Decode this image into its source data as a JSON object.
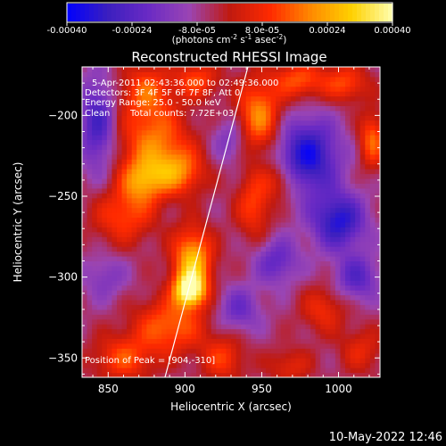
{
  "chart_data": {
    "type": "heatmap",
    "title": "Reconstructed RHESSI Image",
    "xlabel": "Heliocentric X (arcsec)",
    "ylabel": "Heliocentric Y (arcsec)",
    "xlim": [
      833,
      1027
    ],
    "ylim": [
      -362,
      -170
    ],
    "xticks": [
      850,
      900,
      950,
      1000
    ],
    "yticks": [
      -200,
      -250,
      -300,
      -350
    ],
    "colorbar": {
      "range": [
        -0.0004,
        0.0004
      ],
      "ticks": [
        "-0.00040",
        "-0.00024",
        "-8.0e-05",
        "8.0e-05",
        "0.00024",
        "0.00040"
      ],
      "tick_values": [
        -0.0004,
        -0.00024,
        -8e-05,
        8e-05,
        0.00024,
        0.0004
      ],
      "label_prefix": "(photons cm",
      "label_exp1": "-2",
      "label_mid": " s",
      "label_exp2": "-1",
      "label_mid2": " asec",
      "label_exp3": "-2",
      "label_suffix": ")"
    },
    "annotations": {
      "line1": "5-Apr-2011 02:43:36.000 to 02:49:36.000",
      "line2": "Detectors: 3F 4F 5F 6F 7F 8F, Att 0",
      "line3": "Energy Range: 25.0 - 50.0 keV",
      "line4a": "Clean",
      "line4b": "Total counts: 7.72E+03",
      "peak": "Position of Peak = [904,-310]"
    },
    "peak": {
      "x": 904,
      "y": -310
    },
    "limb_line": {
      "x": [
        887,
        941
      ],
      "y": -362,
      "y_end": -170
    },
    "colors": {
      "map_stops": [
        "#0000ff",
        "#3b1fbf",
        "#6a2ac4",
        "#9a45b4",
        "#c01a10",
        "#ff2a00",
        "#ff8a00",
        "#ffd100",
        "#ffffb0"
      ]
    },
    "intensity_blobs": [
      {
        "x": 875,
        "y": -185,
        "sx": 12,
        "sy": 12,
        "a": 0.0002
      },
      {
        "x": 880,
        "y": -215,
        "sx": 16,
        "sy": 14,
        "a": 0.00022
      },
      {
        "x": 872,
        "y": -240,
        "sx": 10,
        "sy": 10,
        "a": 0.00025
      },
      {
        "x": 860,
        "y": -262,
        "sx": 14,
        "sy": 12,
        "a": 0.00018
      },
      {
        "x": 895,
        "y": -235,
        "sx": 12,
        "sy": 10,
        "a": 0.00024
      },
      {
        "x": 908,
        "y": -178,
        "sx": 10,
        "sy": 8,
        "a": 0.00018
      },
      {
        "x": 905,
        "y": -290,
        "sx": 9,
        "sy": 14,
        "a": 0.00034
      },
      {
        "x": 903,
        "y": -308,
        "sx": 7,
        "sy": 7,
        "a": 0.0004
      },
      {
        "x": 890,
        "y": -330,
        "sx": 16,
        "sy": 12,
        "a": 0.00022
      },
      {
        "x": 860,
        "y": -350,
        "sx": 14,
        "sy": 10,
        "a": 0.00018
      },
      {
        "x": 925,
        "y": -350,
        "sx": 10,
        "sy": 10,
        "a": 0.00016
      },
      {
        "x": 948,
        "y": -200,
        "sx": 10,
        "sy": 16,
        "a": 0.00026
      },
      {
        "x": 945,
        "y": -255,
        "sx": 8,
        "sy": 14,
        "a": 0.00018
      },
      {
        "x": 962,
        "y": -240,
        "sx": 8,
        "sy": 8,
        "a": 0.00014
      },
      {
        "x": 975,
        "y": -178,
        "sx": 12,
        "sy": 8,
        "a": 0.0002
      },
      {
        "x": 1005,
        "y": -180,
        "sx": 10,
        "sy": 8,
        "a": 0.00018
      },
      {
        "x": 1022,
        "y": -215,
        "sx": 6,
        "sy": 12,
        "a": 0.00022
      },
      {
        "x": 990,
        "y": -320,
        "sx": 10,
        "sy": 10,
        "a": 0.00014
      },
      {
        "x": 1015,
        "y": -345,
        "sx": 10,
        "sy": 10,
        "a": 0.00012
      },
      {
        "x": 968,
        "y": -355,
        "sx": 10,
        "sy": 8,
        "a": 0.00012
      },
      {
        "x": 843,
        "y": -205,
        "sx": 8,
        "sy": 20,
        "a": -0.00022
      },
      {
        "x": 848,
        "y": -300,
        "sx": 10,
        "sy": 10,
        "a": -0.0001
      },
      {
        "x": 980,
        "y": -225,
        "sx": 14,
        "sy": 16,
        "a": -0.0003
      },
      {
        "x": 1000,
        "y": -265,
        "sx": 12,
        "sy": 12,
        "a": -0.00028
      },
      {
        "x": 1012,
        "y": -300,
        "sx": 10,
        "sy": 10,
        "a": -0.00018
      },
      {
        "x": 960,
        "y": -290,
        "sx": 10,
        "sy": 10,
        "a": -0.00016
      },
      {
        "x": 930,
        "y": -215,
        "sx": 8,
        "sy": 10,
        "a": -0.00012
      },
      {
        "x": 935,
        "y": -320,
        "sx": 10,
        "sy": 10,
        "a": -0.00014
      }
    ]
  },
  "footer": {
    "timestamp": "10-May-2022 12:46"
  }
}
